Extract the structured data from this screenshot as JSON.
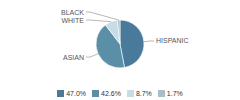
{
  "chart_data": {
    "type": "pie",
    "categories": [
      "HISPANIC",
      "ASIAN",
      "WHITE",
      "BLACK"
    ],
    "values": [
      47.0,
      42.6,
      8.7,
      1.7
    ],
    "value_labels": [
      "47.0%",
      "42.6%",
      "8.7%",
      "1.7%"
    ],
    "colors": [
      "#4a7a9b",
      "#5b8fa8",
      "#c8dce6",
      "#a8bfc8"
    ],
    "legend": "bottom"
  }
}
